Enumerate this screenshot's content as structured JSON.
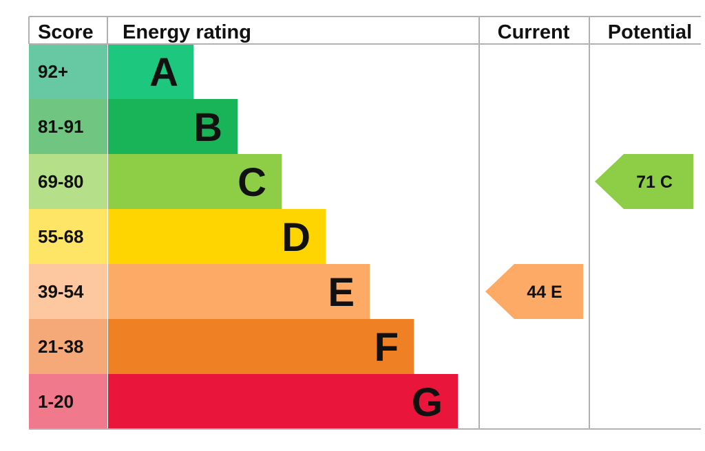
{
  "chart_data": {
    "type": "bar",
    "headers": {
      "score": "Score",
      "rating": "Energy rating",
      "current": "Current",
      "potential": "Potential"
    },
    "bands": [
      {
        "letter": "A",
        "range": "92+",
        "min": 92,
        "max": 100,
        "color": "#1ec77e",
        "score_bg": "#67c9a3"
      },
      {
        "letter": "B",
        "range": "81-91",
        "min": 81,
        "max": 91,
        "color": "#19b457",
        "score_bg": "#70c680"
      },
      {
        "letter": "C",
        "range": "69-80",
        "min": 69,
        "max": 80,
        "color": "#8dce46",
        "score_bg": "#b6df8a"
      },
      {
        "letter": "D",
        "range": "55-68",
        "min": 55,
        "max": 68,
        "color": "#ffd500",
        "score_bg": "#ffe566"
      },
      {
        "letter": "E",
        "range": "39-54",
        "min": 39,
        "max": 54,
        "color": "#fcaa65",
        "score_bg": "#fdc8a0"
      },
      {
        "letter": "F",
        "range": "21-38",
        "min": 21,
        "max": 38,
        "color": "#ef8023",
        "score_bg": "#f5a978"
      },
      {
        "letter": "G",
        "range": "1-20",
        "min": 1,
        "max": 20,
        "color": "#e9153b",
        "score_bg": "#f07a8c"
      }
    ],
    "current": {
      "value": 44,
      "band": "E",
      "label": "44  E",
      "color": "#fcaa65"
    },
    "potential": {
      "value": 71,
      "band": "C",
      "label": "71  C",
      "color": "#8dce46"
    }
  }
}
